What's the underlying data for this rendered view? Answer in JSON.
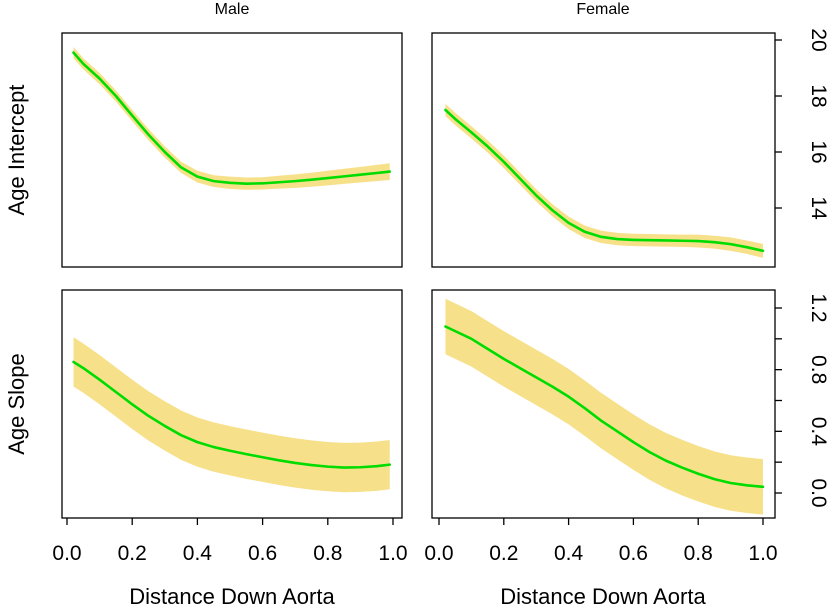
{
  "figure": {
    "col_titles": [
      "Male",
      "Female"
    ],
    "row_ylabels": [
      "Age Intercept",
      "Age Slope"
    ],
    "xlabel": "Distance Down Aorta",
    "colors": {
      "line": "#00DB00",
      "band": "#F7E08A",
      "frame": "#000000",
      "text": "#000000",
      "background": "#FFFFFF"
    }
  },
  "chart_data": {
    "type": "line",
    "layout": "2x2 trellis (columns: sex, rows: coefficient), smooth fit lines with confidence bands, shared axes labeled on right and bottom",
    "grid": "off",
    "legend": "none",
    "x_axis": {
      "label": "Distance Down Aorta",
      "lim": [
        -0.02,
        1.03
      ],
      "ticks": [
        0.0,
        0.2,
        0.4,
        0.6,
        0.8,
        1.0
      ],
      "tick_labels": [
        "0.0",
        "0.2",
        "0.4",
        "0.6",
        "0.8",
        "1.0"
      ]
    },
    "rows": [
      {
        "ylabel": "Age Intercept",
        "ylim": [
          11.9,
          20.25
        ],
        "yticks": [
          14,
          16,
          18,
          20
        ],
        "ytick_labels": [
          "14",
          "16",
          "18",
          "20"
        ]
      },
      {
        "ylabel": "Age Slope",
        "ylim": [
          -0.16,
          1.32
        ],
        "yticks": [
          0.0,
          0.2,
          0.4,
          0.6,
          0.8,
          1.0,
          1.2
        ],
        "ytick_labels": [
          "0.0",
          "",
          "0.4",
          "",
          "0.8",
          "",
          "1.2"
        ]
      }
    ],
    "cols": [
      {
        "title": "Male"
      },
      {
        "title": "Female"
      }
    ],
    "panels": [
      {
        "name": "male-age-intercept",
        "col": 0,
        "row": 0,
        "x": [
          0.02,
          0.05,
          0.1,
          0.15,
          0.2,
          0.25,
          0.3,
          0.35,
          0.4,
          0.45,
          0.5,
          0.55,
          0.6,
          0.65,
          0.7,
          0.75,
          0.8,
          0.85,
          0.9,
          0.95,
          0.99
        ],
        "y": [
          19.55,
          19.15,
          18.62,
          18.0,
          17.3,
          16.62,
          16.0,
          15.45,
          15.12,
          14.96,
          14.9,
          14.87,
          14.88,
          14.92,
          14.96,
          15.01,
          15.07,
          15.13,
          15.19,
          15.25,
          15.3
        ],
        "lo": [
          19.35,
          18.95,
          18.42,
          17.8,
          17.1,
          16.42,
          15.8,
          15.25,
          14.91,
          14.75,
          14.68,
          14.65,
          14.66,
          14.69,
          14.72,
          14.76,
          14.81,
          14.86,
          14.91,
          14.96,
          15.0
        ],
        "hi": [
          19.75,
          19.35,
          18.82,
          18.2,
          17.5,
          16.82,
          16.2,
          15.65,
          15.33,
          15.17,
          15.12,
          15.09,
          15.1,
          15.15,
          15.2,
          15.26,
          15.33,
          15.4,
          15.47,
          15.54,
          15.6
        ]
      },
      {
        "name": "female-age-intercept",
        "col": 1,
        "row": 0,
        "x": [
          0.02,
          0.05,
          0.1,
          0.15,
          0.2,
          0.25,
          0.3,
          0.35,
          0.4,
          0.45,
          0.5,
          0.55,
          0.6,
          0.65,
          0.7,
          0.75,
          0.8,
          0.85,
          0.9,
          0.95,
          1.0
        ],
        "y": [
          17.5,
          17.18,
          16.7,
          16.2,
          15.65,
          15.05,
          14.45,
          13.92,
          13.47,
          13.15,
          12.97,
          12.89,
          12.86,
          12.85,
          12.84,
          12.83,
          12.82,
          12.78,
          12.71,
          12.6,
          12.47
        ],
        "lo": [
          17.28,
          16.96,
          16.48,
          15.98,
          15.43,
          14.83,
          14.23,
          13.7,
          13.25,
          12.93,
          12.75,
          12.67,
          12.64,
          12.63,
          12.62,
          12.61,
          12.59,
          12.55,
          12.47,
          12.36,
          12.22
        ],
        "hi": [
          17.72,
          17.4,
          16.92,
          16.42,
          15.87,
          15.27,
          14.67,
          14.14,
          13.69,
          13.37,
          13.19,
          13.11,
          13.08,
          13.07,
          13.06,
          13.05,
          13.05,
          13.01,
          12.95,
          12.84,
          12.72
        ]
      },
      {
        "name": "male-age-slope",
        "col": 0,
        "row": 1,
        "x": [
          0.02,
          0.05,
          0.1,
          0.15,
          0.2,
          0.25,
          0.3,
          0.35,
          0.4,
          0.45,
          0.5,
          0.55,
          0.6,
          0.65,
          0.7,
          0.75,
          0.8,
          0.85,
          0.9,
          0.95,
          0.99
        ],
        "y": [
          0.85,
          0.81,
          0.735,
          0.655,
          0.575,
          0.5,
          0.435,
          0.375,
          0.33,
          0.298,
          0.274,
          0.252,
          0.232,
          0.212,
          0.195,
          0.181,
          0.171,
          0.165,
          0.167,
          0.174,
          0.184
        ],
        "lo": [
          0.69,
          0.65,
          0.575,
          0.495,
          0.415,
          0.34,
          0.275,
          0.215,
          0.17,
          0.138,
          0.114,
          0.092,
          0.072,
          0.052,
          0.035,
          0.021,
          0.011,
          0.005,
          0.007,
          0.014,
          0.024
        ],
        "hi": [
          1.01,
          0.97,
          0.895,
          0.815,
          0.735,
          0.66,
          0.595,
          0.535,
          0.49,
          0.458,
          0.434,
          0.412,
          0.392,
          0.372,
          0.355,
          0.341,
          0.331,
          0.325,
          0.327,
          0.334,
          0.344
        ]
      },
      {
        "name": "female-age-slope",
        "col": 1,
        "row": 1,
        "x": [
          0.02,
          0.05,
          0.1,
          0.15,
          0.2,
          0.25,
          0.3,
          0.35,
          0.4,
          0.45,
          0.5,
          0.55,
          0.6,
          0.65,
          0.7,
          0.75,
          0.8,
          0.85,
          0.9,
          0.95,
          1.0
        ],
        "y": [
          1.08,
          1.05,
          1.0,
          0.935,
          0.87,
          0.81,
          0.75,
          0.69,
          0.625,
          0.55,
          0.47,
          0.4,
          0.33,
          0.265,
          0.21,
          0.165,
          0.125,
          0.09,
          0.065,
          0.05,
          0.04
        ],
        "lo": [
          0.9,
          0.87,
          0.82,
          0.755,
          0.69,
          0.63,
          0.57,
          0.51,
          0.445,
          0.37,
          0.29,
          0.22,
          0.15,
          0.085,
          0.03,
          -0.015,
          -0.055,
          -0.09,
          -0.115,
          -0.13,
          -0.14
        ],
        "hi": [
          1.26,
          1.23,
          1.18,
          1.115,
          1.05,
          0.99,
          0.93,
          0.87,
          0.805,
          0.73,
          0.65,
          0.58,
          0.51,
          0.445,
          0.39,
          0.345,
          0.305,
          0.27,
          0.245,
          0.23,
          0.22
        ]
      }
    ]
  }
}
